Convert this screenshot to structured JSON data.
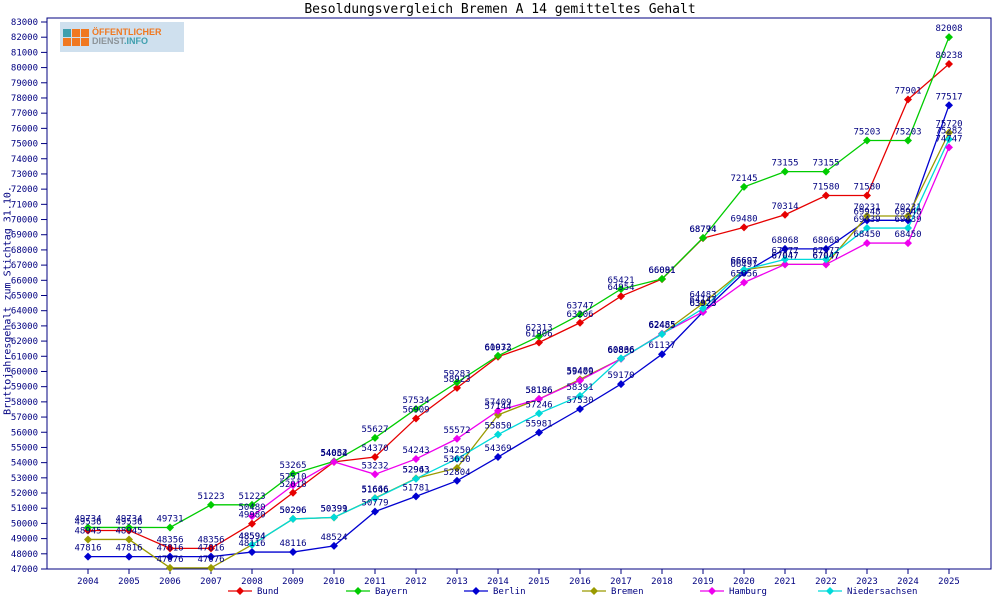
{
  "page": {
    "title": "Besoldungsvergleich Bremen A 14 gemitteltes Gehalt",
    "logo": {
      "line1": "ÖFFENTLICHER",
      "line2_part1": "DIENST",
      "line2_part2": ".INFO"
    }
  },
  "chart_data": {
    "type": "line",
    "title": "Besoldungsvergleich Bremen A 14 gemitteltes Gehalt",
    "ylabel": "Bruttojahresgehalt zum Stichtag 31.10.",
    "xlabel": "",
    "ylim": [
      47000,
      83000
    ],
    "ytick_step": 1000,
    "grid": false,
    "legend_position": "bottom",
    "axis_color": "#000080",
    "label_color": "#000080",
    "x": [
      2004,
      2005,
      2006,
      2007,
      2008,
      2009,
      2010,
      2011,
      2012,
      2013,
      2014,
      2015,
      2016,
      2017,
      2018,
      2019,
      2020,
      2021,
      2022,
      2023,
      2024,
      2025
    ],
    "series": [
      {
        "name": "Bund",
        "color": "#e60000",
        "values": [
          49536,
          49536,
          48356,
          48356,
          49980,
          52018,
          54054,
          54370,
          56909,
          58923,
          60973,
          61906,
          63206,
          64954,
          66081,
          68774,
          69480,
          70314,
          71580,
          71580,
          77901,
          80238
        ]
      },
      {
        "name": "Bayern",
        "color": "#00cc00",
        "values": [
          49734,
          49734,
          49731,
          51223,
          51223,
          53265,
          54082,
          55627,
          57534,
          59283,
          61032,
          62313,
          63747,
          65421,
          66091,
          68794,
          72145,
          73155,
          73155,
          75203,
          75203,
          82008
        ]
      },
      {
        "name": "Berlin",
        "color": "#0000d0",
        "values": [
          47816,
          47816,
          47816,
          47816,
          48116,
          48116,
          48524,
          50779,
          51781,
          52804,
          54369,
          55981,
          57530,
          59170,
          61137,
          63923,
          66497,
          68068,
          68068,
          69948,
          69948,
          77517
        ]
      },
      {
        "name": "Bremen",
        "color": "#9a9a00",
        "values": [
          48945,
          48945,
          47076,
          47076,
          48594,
          50296,
          50391,
          51666,
          52963,
          53650,
          57144,
          58186,
          59480,
          60836,
          62485,
          64483,
          66697,
          67047,
          67047,
          70231,
          70231,
          75720
        ]
      },
      {
        "name": "Hamburg",
        "color": "#ee00ee",
        "values": [
          null,
          null,
          null,
          null,
          50480,
          52510,
          54054,
          53232,
          54243,
          55572,
          57409,
          58186,
          59409,
          60836,
          62485,
          63923,
          65856,
          67047,
          67047,
          68450,
          68450,
          74747
        ]
      },
      {
        "name": "Niedersachsen",
        "color": "#00dada",
        "values": [
          null,
          null,
          null,
          null,
          48594,
          50296,
          50399,
          51646,
          52943,
          54250,
          55850,
          57246,
          58391,
          60866,
          62455,
          64143,
          66697,
          67377,
          67377,
          69439,
          69439,
          75282
        ]
      }
    ]
  }
}
